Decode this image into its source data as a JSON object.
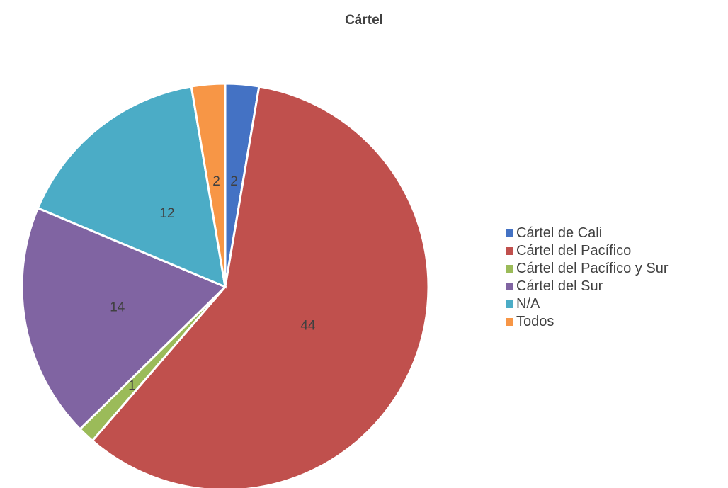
{
  "chart_data": {
    "type": "pie",
    "title": "Cártel",
    "categories": [
      "Cártel de Cali",
      "Cártel del Pacífico",
      "Cártel del Pacífico y Sur",
      "Cártel del Sur",
      "N/A",
      "Todos"
    ],
    "values": [
      2,
      44,
      1,
      14,
      12,
      2
    ],
    "colors": [
      "#4472c4",
      "#c0504d",
      "#9bbb59",
      "#8064a2",
      "#4bacc6",
      "#f79646"
    ],
    "data_labels": [
      "2",
      "44",
      "1",
      "14",
      "12",
      "2"
    ],
    "legend": "right",
    "start_angle": "12 o'clock",
    "direction": "clockwise"
  }
}
